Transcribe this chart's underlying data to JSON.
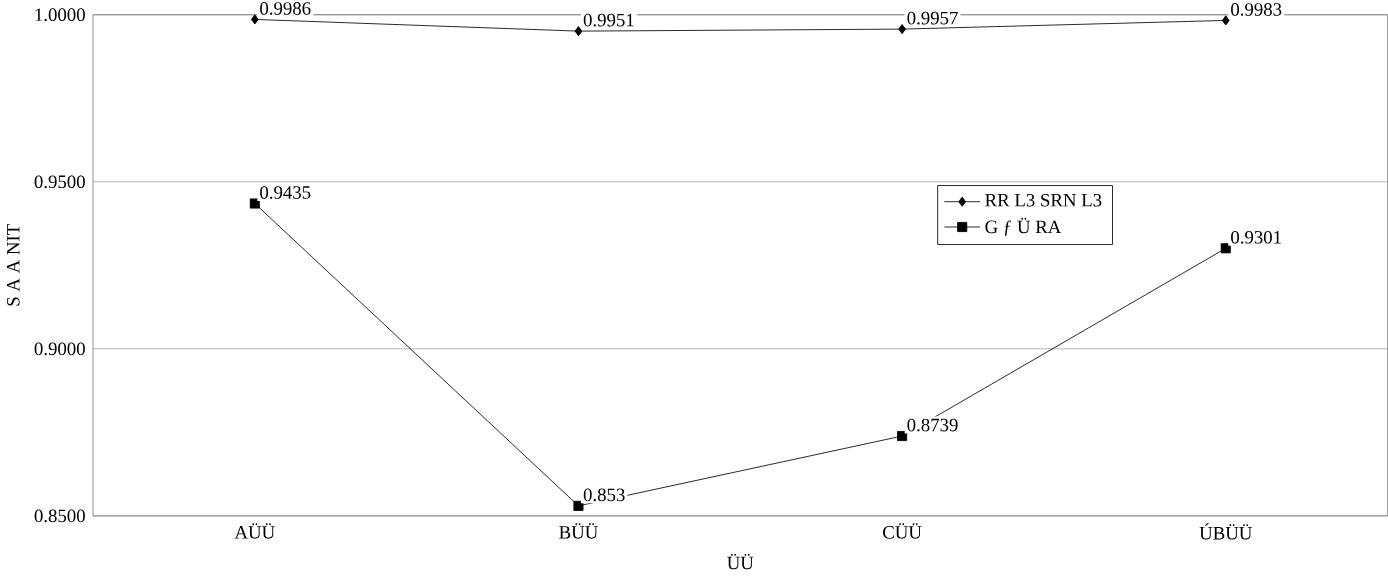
{
  "chart_data": {
    "type": "line",
    "xlabel": "ÜÜ",
    "ylabel": "S A A NIT",
    "categories": [
      "AÜÜ",
      "BÜÜ",
      "CÜÜ",
      "ÚBÜÜ"
    ],
    "series": [
      {
        "name": "RR L3 SRN L3",
        "color": "#000000",
        "marker": "diamond",
        "values": [
          0.9986,
          0.9951,
          0.9957,
          0.9983
        ]
      },
      {
        "name": "G ƒ Ü RA",
        "color": "#000000",
        "marker": "square",
        "values": [
          0.9435,
          0.853,
          0.8739,
          0.9301
        ]
      }
    ],
    "ylim": [
      0.85,
      1.0
    ],
    "yticks": [
      {
        "value": 0.85,
        "label": "0.8500"
      },
      {
        "value": 0.9,
        "label": "0.9000"
      },
      {
        "value": 0.95,
        "label": "0.9500"
      },
      {
        "value": 1.0,
        "label": "1.0000"
      }
    ],
    "grid": "y",
    "legend": "right",
    "data_labels": true
  }
}
